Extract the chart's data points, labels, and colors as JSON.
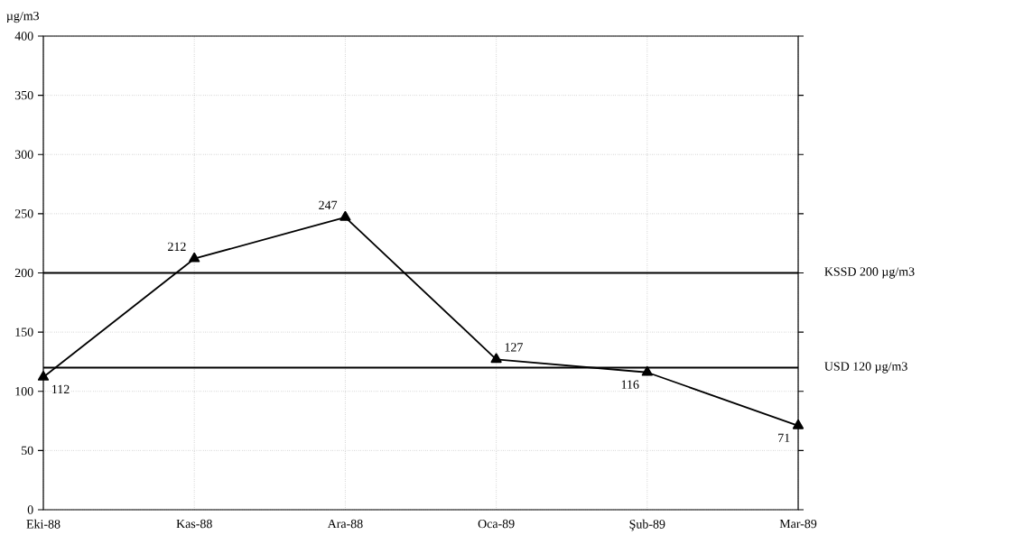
{
  "chart_data": {
    "type": "line",
    "ylabel": "µg/m3",
    "categories": [
      "Eki-88",
      "Kas-88",
      "Ara-88",
      "Oca-89",
      "Şub-89",
      "Mar-89"
    ],
    "series": [
      {
        "color": "#000000",
        "values": [
          112,
          212,
          247,
          127,
          116,
          71
        ]
      }
    ],
    "ylim": [
      0,
      400
    ],
    "yticks": [
      0,
      50,
      100,
      150,
      200,
      250,
      300,
      350,
      400
    ],
    "ref_lines": [
      {
        "axis": "y",
        "value": 200,
        "label": "KSSD 200 µg/m3",
        "color": "#000000"
      },
      {
        "axis": "y",
        "value": 120,
        "label": "USD 120 µg/m3",
        "color": "#000000"
      }
    ],
    "data_labels": true,
    "grid": true,
    "marker": "triangle",
    "line_style": "solid"
  }
}
